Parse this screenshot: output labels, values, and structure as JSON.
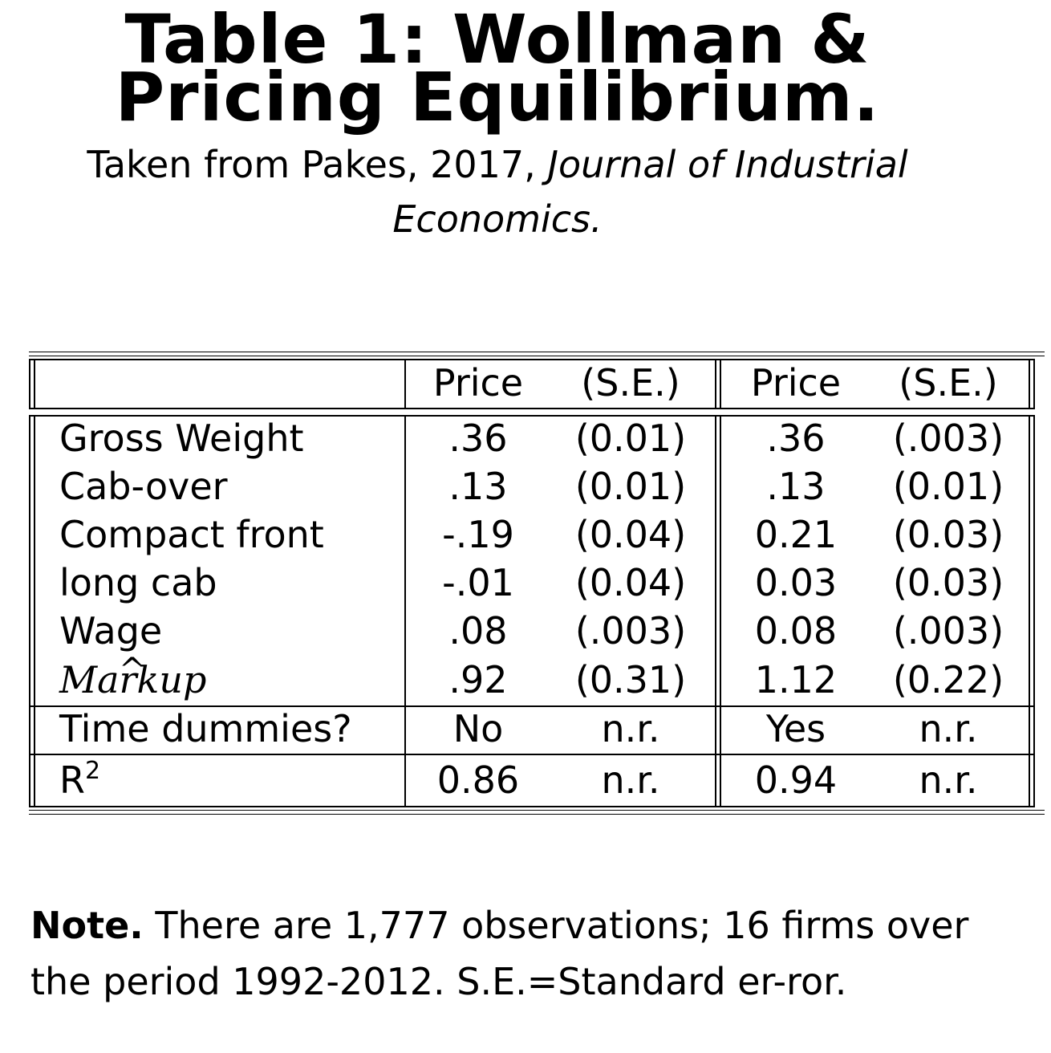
{
  "title": {
    "line1": "Table 1:  Wollman &",
    "line2": "Pricing Equilibrium."
  },
  "subtitle": {
    "prefix": "Taken from Pakes, 2017, ",
    "journal_part1": "Journal of Industrial",
    "journal_part2": "Economics."
  },
  "table": {
    "headers": [
      "",
      "Price",
      "(S.E.)",
      "Price",
      "(S.E.)"
    ],
    "rows": [
      {
        "label": "Gross Weight",
        "cells": [
          ".36",
          "(0.01)",
          ".36",
          "(.003)"
        ]
      },
      {
        "label": "Cab-over",
        "cells": [
          ".13",
          "(0.01)",
          ".13",
          "(0.01)"
        ]
      },
      {
        "label": "Compact front",
        "cells": [
          "-.19",
          "(0.04)",
          "0.21",
          "(0.03)"
        ]
      },
      {
        "label": "long cab",
        "cells": [
          "-.01",
          "(0.04)",
          "0.03",
          "(0.03)"
        ]
      },
      {
        "label": "Wage",
        "cells": [
          ".08",
          "(.003)",
          "0.08",
          "(.003)"
        ]
      },
      {
        "label": "Markup",
        "label_hat": "^",
        "cells": [
          ".92",
          "(0.31)",
          "1.12",
          "(0.22)"
        ]
      }
    ],
    "time_dummies": {
      "label": "Time dummies?",
      "cells": [
        "No",
        "n.r.",
        "Yes",
        "n.r."
      ]
    },
    "r2": {
      "label": "R",
      "sup": "2",
      "cells": [
        "0.86",
        "n.r.",
        "0.94",
        "n.r."
      ]
    }
  },
  "note": {
    "bold": "Note.",
    "text": "  There are 1,777 observations; 16 firms over the period 1992-2012.  S.E.=Standard er-ror."
  }
}
